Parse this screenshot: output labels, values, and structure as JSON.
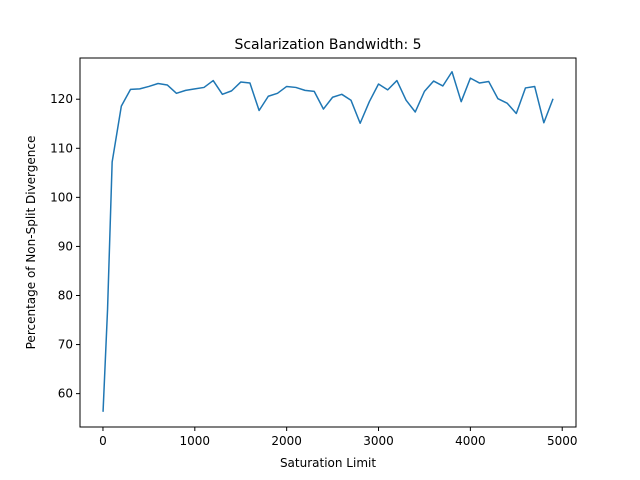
{
  "chart_data": {
    "type": "line",
    "title": "Scalarization Bandwidth: 5",
    "xlabel": "Saturation Limit",
    "ylabel": "Percentage of Non-Split Divergence",
    "xlim": [
      -250,
      5150
    ],
    "ylim": [
      53.2,
      128.4
    ],
    "xticks": [
      0,
      1000,
      2000,
      3000,
      4000,
      5000
    ],
    "yticks": [
      60,
      70,
      80,
      90,
      100,
      110,
      120
    ],
    "grid": false,
    "color": "#1f77b4",
    "series": [
      {
        "x": [
          1,
          50,
          100,
          200,
          300,
          400,
          500,
          600,
          700,
          800,
          900,
          1000,
          1100,
          1200,
          1300,
          1400,
          1500,
          1600,
          1700,
          1800,
          1900,
          2000,
          2100,
          2200,
          2300,
          2400,
          2500,
          2600,
          2700,
          2800,
          2900,
          3000,
          3100,
          3200,
          3300,
          3400,
          3500,
          3600,
          3700,
          3800,
          3900,
          4000,
          4100,
          4200,
          4300,
          4400,
          4500,
          4600,
          4700,
          4800,
          4900
        ],
        "y": [
          56.3,
          77.2,
          107.2,
          118.6,
          122.0,
          122.1,
          122.6,
          123.2,
          122.9,
          121.2,
          121.8,
          122.1,
          122.4,
          123.8,
          121.0,
          121.7,
          123.5,
          123.3,
          117.7,
          120.6,
          121.2,
          122.6,
          122.4,
          121.8,
          121.6,
          118.0,
          120.4,
          121.0,
          119.8,
          115.1,
          119.5,
          123.1,
          121.9,
          123.8,
          119.8,
          117.4,
          121.6,
          123.7,
          122.7,
          125.6,
          119.5,
          124.3,
          123.3,
          123.6,
          120.1,
          119.2,
          117.1,
          122.3,
          122.6,
          115.2,
          120.1
        ]
      }
    ]
  }
}
